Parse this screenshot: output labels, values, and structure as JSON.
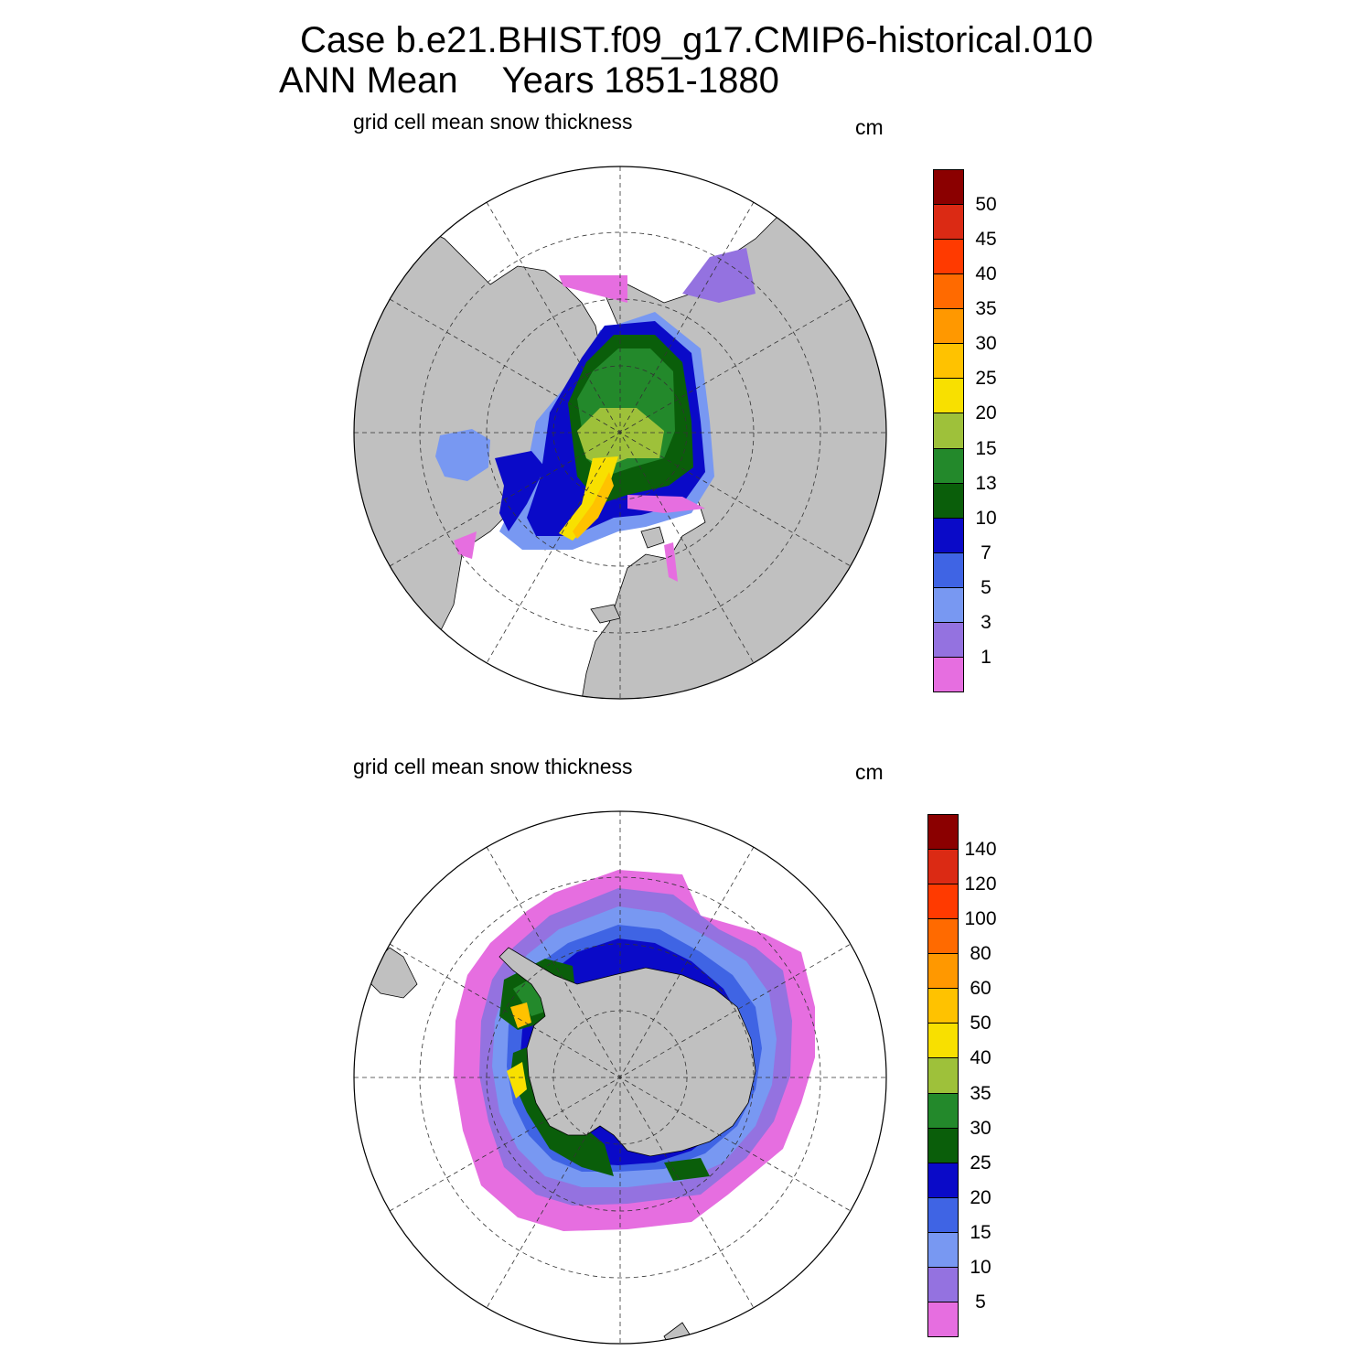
{
  "title": {
    "line1": "Case b.e21.BHIST.f09_g17.CMIP6-historical.010",
    "line2_left": "ANN Mean",
    "line2_right": "Years 1851-1880"
  },
  "panels": [
    {
      "id": "arctic",
      "label": "grid cell mean snow thickness",
      "units": "cm",
      "colorbar": {
        "levels": [
          "50",
          "45",
          "40",
          "35",
          "30",
          "25",
          "20",
          "15",
          "13",
          "10",
          "7",
          "5",
          "3",
          "1"
        ],
        "colors": [
          "#8b0000",
          "#db2a14",
          "#ff3a00",
          "#ff6a00",
          "#ff9800",
          "#ffc200",
          "#f8e000",
          "#9ec13a",
          "#23892b",
          "#0a5e0a",
          "#0a0ac8",
          "#3f64e4",
          "#7898f2",
          "#9472e0",
          "#e66ee0"
        ]
      }
    },
    {
      "id": "antarctic",
      "label": "grid cell mean snow thickness",
      "units": "cm",
      "colorbar": {
        "levels": [
          "140",
          "120",
          "100",
          "80",
          "60",
          "50",
          "40",
          "35",
          "30",
          "25",
          "20",
          "15",
          "10",
          "5"
        ],
        "colors": [
          "#8b0000",
          "#db2a14",
          "#ff3a00",
          "#ff6a00",
          "#ff9800",
          "#ffc200",
          "#f8e000",
          "#9ec13a",
          "#23892b",
          "#0a5e0a",
          "#0a0ac8",
          "#3f64e4",
          "#7898f2",
          "#9472e0",
          "#e66ee0"
        ]
      }
    }
  ],
  "colors": {
    "land": "#c0c0c0",
    "ocean": "#ffffff",
    "graticule": "#333333"
  }
}
